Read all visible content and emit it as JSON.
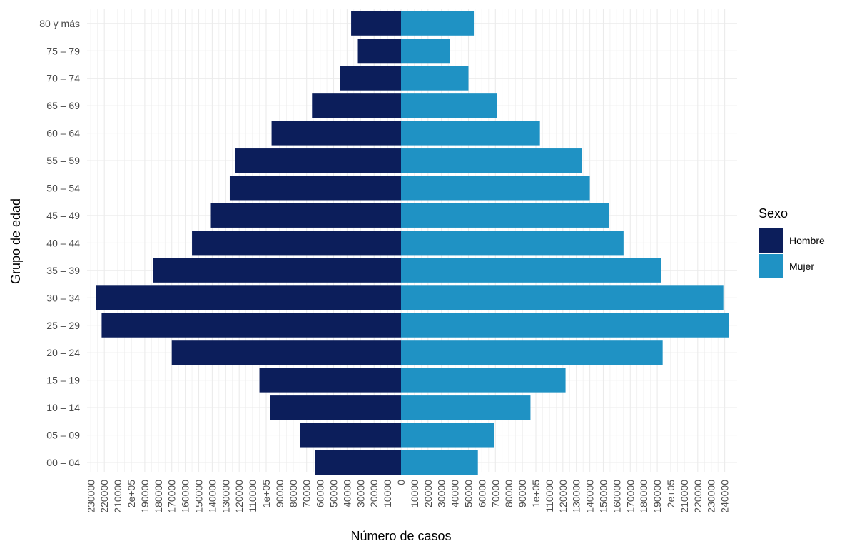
{
  "chart_data": {
    "type": "bar",
    "orientation": "horizontal",
    "xlabel": "Número de casos",
    "ylabel": "Grupo de edad",
    "categories": [
      "00 – 04",
      "05 – 09",
      "10 – 14",
      "15 – 19",
      "20 – 24",
      "25 – 29",
      "30 – 34",
      "35 – 39",
      "40 – 44",
      "45 – 49",
      "50 – 54",
      "55 – 59",
      "60 – 64",
      "65 – 69",
      "70 – 74",
      "75 – 79",
      "80 y más"
    ],
    "series": [
      {
        "name": "Hombre",
        "color": "#0c1e5b",
        "side": "left",
        "values": [
          64000,
          75000,
          97000,
          105000,
          170000,
          222000,
          226000,
          184000,
          155000,
          141000,
          127000,
          123000,
          96000,
          66000,
          45000,
          32000,
          37000
        ]
      },
      {
        "name": "Mujer",
        "color": "#1f92c4",
        "side": "right",
        "values": [
          57000,
          69000,
          96000,
          122000,
          194000,
          243000,
          239000,
          193000,
          165000,
          154000,
          140000,
          134000,
          103000,
          71000,
          50000,
          36000,
          54000
        ]
      }
    ],
    "x_ticks_left": [
      "230000",
      "220000",
      "210000",
      "2e+05",
      "190000",
      "180000",
      "170000",
      "160000",
      "150000",
      "140000",
      "130000",
      "120000",
      "110000",
      "1e+05",
      "90000",
      "80000",
      "70000",
      "60000",
      "50000",
      "40000",
      "30000",
      "20000",
      "10000"
    ],
    "x_tick_zero": "0",
    "x_ticks_right": [
      "10000",
      "20000",
      "30000",
      "40000",
      "50000",
      "60000",
      "70000",
      "80000",
      "90000",
      "1e+05",
      "110000",
      "120000",
      "130000",
      "140000",
      "150000",
      "160000",
      "170000",
      "180000",
      "190000",
      "2e+05",
      "210000",
      "220000",
      "230000",
      "240000"
    ],
    "legend": {
      "title": "Sexo",
      "position": "right"
    },
    "grid": true,
    "background": "#ffffff",
    "grid_color": "#ebebeb"
  }
}
